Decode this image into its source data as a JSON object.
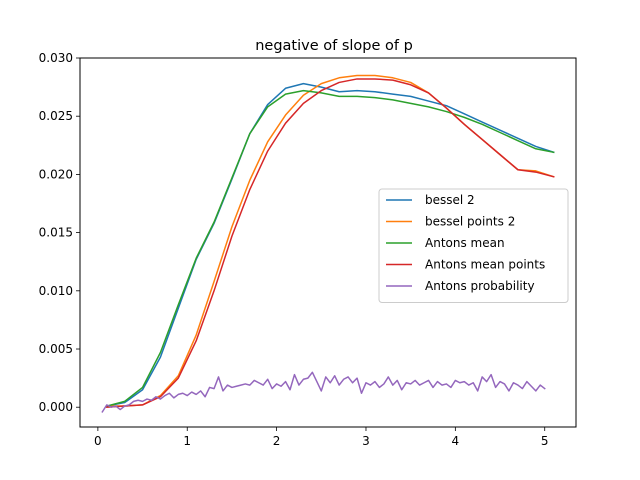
{
  "chart_data": {
    "type": "line",
    "title": "negative of slope of p",
    "xlabel": "",
    "ylabel": "",
    "xlim": [
      -0.2,
      5.35
    ],
    "ylim": [
      -0.0017,
      0.03
    ],
    "xticks": [
      0,
      1,
      2,
      3,
      4,
      5
    ],
    "xtick_labels": [
      "0",
      "1",
      "2",
      "3",
      "4",
      "5"
    ],
    "yticks": [
      0.0,
      0.005,
      0.01,
      0.015,
      0.02,
      0.025,
      0.03
    ],
    "ytick_labels": [
      "0.000",
      "0.005",
      "0.010",
      "0.015",
      "0.020",
      "0.025",
      "0.030"
    ],
    "grid": false,
    "legend_position": "center-right",
    "series": [
      {
        "name": "bessel 2",
        "color": "#1f77b4",
        "x": [
          0.1,
          0.3,
          0.5,
          0.7,
          0.9,
          1.1,
          1.3,
          1.5,
          1.7,
          1.9,
          2.1,
          2.3,
          2.5,
          2.7,
          2.9,
          3.1,
          3.3,
          3.5,
          3.7,
          3.9,
          4.1,
          4.3,
          4.5,
          4.7,
          4.9,
          5.1
        ],
        "y": [
          0.0001,
          0.0004,
          0.0015,
          0.0043,
          0.0085,
          0.0127,
          0.0158,
          0.0196,
          0.0235,
          0.026,
          0.0274,
          0.0278,
          0.0275,
          0.0271,
          0.0272,
          0.0271,
          0.0269,
          0.0267,
          0.0263,
          0.0259,
          0.0252,
          0.0245,
          0.0238,
          0.0231,
          0.0224,
          0.0219
        ]
      },
      {
        "name": "bessel points 2",
        "color": "#ff7f0e",
        "x": [
          0.1,
          0.3,
          0.5,
          0.7,
          0.9,
          1.1,
          1.3,
          1.5,
          1.7,
          1.9,
          2.1,
          2.3,
          2.5,
          2.7,
          2.9,
          3.1,
          3.3,
          3.5,
          3.7,
          3.9,
          4.1,
          4.3,
          4.5,
          4.7,
          4.9,
          5.1
        ],
        "y": [
          0.0001,
          0.0001,
          0.0002,
          0.001,
          0.0027,
          0.0062,
          0.0108,
          0.0155,
          0.0195,
          0.0228,
          0.0251,
          0.0268,
          0.0278,
          0.0283,
          0.0285,
          0.0285,
          0.0283,
          0.0279,
          0.027,
          0.0257,
          0.0243,
          0.023,
          0.0217,
          0.0204,
          0.0203,
          0.0198
        ]
      },
      {
        "name": "Antons mean",
        "color": "#2ca02c",
        "x": [
          0.1,
          0.3,
          0.5,
          0.7,
          0.9,
          1.1,
          1.3,
          1.5,
          1.7,
          1.9,
          2.1,
          2.3,
          2.5,
          2.7,
          2.9,
          3.1,
          3.3,
          3.5,
          3.7,
          3.9,
          4.1,
          4.3,
          4.5,
          4.7,
          4.9,
          5.1
        ],
        "y": [
          0.0001,
          0.0005,
          0.0017,
          0.0047,
          0.0088,
          0.0128,
          0.0159,
          0.0197,
          0.0235,
          0.0258,
          0.0269,
          0.0272,
          0.027,
          0.0267,
          0.0267,
          0.0266,
          0.0264,
          0.0261,
          0.0258,
          0.0254,
          0.0249,
          0.0243,
          0.0236,
          0.0229,
          0.0222,
          0.0219
        ]
      },
      {
        "name": "Antons mean points",
        "color": "#d62728",
        "x": [
          0.1,
          0.3,
          0.5,
          0.7,
          0.9,
          1.1,
          1.3,
          1.5,
          1.7,
          1.9,
          2.1,
          2.3,
          2.5,
          2.7,
          2.9,
          3.1,
          3.3,
          3.5,
          3.7,
          3.9,
          4.1,
          4.3,
          4.5,
          4.7,
          4.9,
          5.1
        ],
        "y": [
          0.0,
          0.0001,
          0.0002,
          0.0009,
          0.0025,
          0.0057,
          0.01,
          0.0147,
          0.0187,
          0.022,
          0.0244,
          0.0261,
          0.0272,
          0.0279,
          0.0282,
          0.0282,
          0.0281,
          0.0277,
          0.027,
          0.0257,
          0.0243,
          0.023,
          0.0217,
          0.0204,
          0.0202,
          0.0198
        ]
      },
      {
        "name": "Antons probability",
        "color": "#9467bd",
        "x": [
          0.05,
          0.1,
          0.15,
          0.2,
          0.25,
          0.3,
          0.35,
          0.4,
          0.45,
          0.5,
          0.55,
          0.6,
          0.65,
          0.7,
          0.75,
          0.8,
          0.85,
          0.9,
          0.95,
          1.0,
          1.05,
          1.1,
          1.15,
          1.2,
          1.25,
          1.3,
          1.35,
          1.4,
          1.45,
          1.5,
          1.55,
          1.6,
          1.65,
          1.7,
          1.75,
          1.8,
          1.85,
          1.9,
          1.95,
          2.0,
          2.05,
          2.1,
          2.15,
          2.2,
          2.25,
          2.3,
          2.35,
          2.4,
          2.45,
          2.5,
          2.55,
          2.6,
          2.65,
          2.7,
          2.75,
          2.8,
          2.85,
          2.9,
          2.95,
          3.0,
          3.05,
          3.1,
          3.15,
          3.2,
          3.25,
          3.3,
          3.35,
          3.4,
          3.45,
          3.5,
          3.55,
          3.6,
          3.65,
          3.7,
          3.75,
          3.8,
          3.85,
          3.9,
          3.95,
          4.0,
          4.05,
          4.1,
          4.15,
          4.2,
          4.25,
          4.3,
          4.35,
          4.4,
          4.45,
          4.5,
          4.55,
          4.6,
          4.65,
          4.7,
          4.75,
          4.8,
          4.85,
          4.9,
          4.95,
          5.0
        ],
        "y": [
          -0.0004,
          0.0002,
          0.0,
          0.0001,
          -0.0002,
          0.0001,
          0.0002,
          0.0005,
          0.0006,
          0.0005,
          0.0007,
          0.0006,
          0.0009,
          0.0007,
          0.001,
          0.0012,
          0.0008,
          0.0011,
          0.0012,
          0.001,
          0.0013,
          0.0011,
          0.0014,
          0.0009,
          0.0017,
          0.0016,
          0.0026,
          0.0014,
          0.0019,
          0.0017,
          0.0018,
          0.0019,
          0.002,
          0.0019,
          0.0023,
          0.0021,
          0.0019,
          0.0024,
          0.0016,
          0.002,
          0.0018,
          0.0022,
          0.0015,
          0.0028,
          0.0019,
          0.0024,
          0.0025,
          0.003,
          0.0022,
          0.0014,
          0.0026,
          0.0021,
          0.0027,
          0.0019,
          0.0024,
          0.0026,
          0.0021,
          0.0025,
          0.0012,
          0.0021,
          0.0019,
          0.0022,
          0.0017,
          0.002,
          0.0026,
          0.0019,
          0.0023,
          0.0015,
          0.0021,
          0.002,
          0.0023,
          0.0019,
          0.0021,
          0.0023,
          0.0017,
          0.0022,
          0.0019,
          0.002,
          0.0017,
          0.0023,
          0.0021,
          0.0022,
          0.0019,
          0.0021,
          0.0014,
          0.0026,
          0.0022,
          0.0028,
          0.0017,
          0.0022,
          0.002,
          0.0014,
          0.0021,
          0.0019,
          0.0016,
          0.0022,
          0.0018,
          0.0014,
          0.0019,
          0.0016
        ]
      }
    ]
  }
}
